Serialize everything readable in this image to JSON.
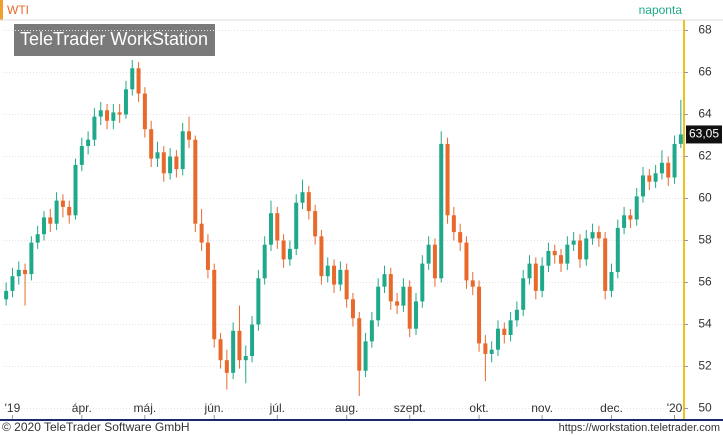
{
  "chart_data": {
    "type": "candlestick",
    "title": "WTI",
    "subtitle": "naponta",
    "watermark": "TeleTrader WorkStation",
    "footer_left": "© 2020 TeleTrader Software GmbH",
    "footer_right": "https://workstation.teletrader.com",
    "up_color": "#1fa98a",
    "down_color": "#e8692b",
    "ylim": [
      49.5,
      68.5
    ],
    "yticks": [
      50,
      52,
      54,
      56,
      58,
      60,
      62,
      64,
      66,
      68
    ],
    "grid": true,
    "xticks": [
      {
        "value": 1,
        "label": "'19"
      },
      {
        "value": 12,
        "label": "ápr."
      },
      {
        "value": 22,
        "label": "máj."
      },
      {
        "value": 33,
        "label": "jún."
      },
      {
        "value": 43,
        "label": "júl."
      },
      {
        "value": 54,
        "label": "aug."
      },
      {
        "value": 64,
        "label": "szept."
      },
      {
        "value": 75,
        "label": "okt."
      },
      {
        "value": 85,
        "label": "nov."
      },
      {
        "value": 96,
        "label": "dec."
      },
      {
        "value": 106,
        "label": "'20"
      }
    ],
    "last_label": "63,05",
    "open": [
      55.2,
      55.6,
      56.3,
      56.6,
      56.4,
      57.9,
      58.3,
      59.1,
      58.8,
      59.9,
      59.6,
      59.2,
      61.6,
      62.5,
      62.8,
      63.9,
      64.2,
      63.7,
      64.1,
      64.0,
      65.2,
      66.2,
      65.0,
      63.3,
      61.9,
      62.2,
      61.2,
      62.0,
      61.4,
      63.2,
      62.8,
      58.8,
      57.9,
      56.6,
      53.3,
      52.3,
      51.7,
      53.7,
      52.3,
      52.5,
      54.0,
      56.2,
      57.8,
      59.3,
      58.0,
      57.1,
      57.6,
      59.8,
      60.3,
      59.4,
      58.2,
      56.3,
      56.8,
      55.9,
      56.6,
      55.2,
      54.3,
      51.8,
      53.2,
      54.2,
      55.8,
      56.4,
      55.1,
      54.9,
      55.8,
      53.8,
      55.1,
      56.9,
      57.8,
      56.2,
      62.6,
      59.2,
      58.4,
      57.9,
      56.1,
      55.8,
      53.1,
      52.6,
      52.8,
      53.8,
      53.5,
      54.2,
      54.7,
      56.2,
      56.9,
      55.6,
      56.8,
      57.5,
      57.3,
      56.9,
      57.8,
      58.0,
      57.1,
      58.1,
      58.4,
      58.1,
      55.6,
      56.5,
      58.6,
      59.2,
      59.0,
      60.1,
      61.1,
      60.8,
      61.2,
      61.7,
      61.0,
      62.6
    ],
    "high": [
      56.0,
      56.7,
      57.0,
      56.9,
      58.2,
      58.7,
      59.4,
      59.5,
      60.3,
      60.2,
      59.9,
      61.9,
      62.9,
      63.2,
      64.3,
      64.6,
      64.5,
      64.5,
      64.5,
      65.6,
      66.6,
      66.5,
      65.3,
      63.7,
      62.7,
      62.5,
      62.4,
      62.3,
      63.6,
      63.9,
      63.0,
      59.5,
      58.3,
      56.9,
      53.6,
      52.8,
      54.1,
      54.9,
      53.0,
      54.4,
      56.6,
      58.2,
      59.9,
      59.6,
      58.3,
      58.0,
      60.2,
      60.9,
      60.6,
      59.7,
      58.5,
      57.2,
      57.1,
      57.0,
      56.9,
      55.5,
      54.6,
      53.6,
      54.6,
      56.2,
      56.8,
      56.7,
      55.5,
      56.2,
      56.1,
      55.5,
      57.3,
      58.2,
      58.1,
      63.2,
      62.9,
      59.6,
      58.8,
      58.2,
      56.5,
      56.1,
      53.5,
      53.2,
      54.2,
      54.1,
      54.6,
      55.1,
      56.6,
      57.3,
      57.2,
      57.2,
      57.9,
      57.8,
      57.6,
      58.2,
      58.4,
      58.3,
      58.5,
      58.8,
      58.7,
      58.4,
      56.9,
      59.0,
      59.6,
      59.5,
      60.5,
      61.5,
      61.4,
      61.6,
      62.3,
      62.0,
      63.0,
      64.7
    ],
    "low": [
      54.9,
      55.3,
      55.9,
      54.9,
      56.1,
      57.6,
      58.0,
      58.4,
      58.5,
      59.1,
      58.8,
      59.0,
      61.3,
      62.1,
      62.5,
      63.5,
      63.3,
      63.3,
      63.6,
      63.8,
      64.9,
      64.6,
      62.9,
      61.5,
      61.5,
      60.8,
      60.9,
      61.0,
      61.1,
      62.4,
      58.4,
      57.5,
      56.2,
      52.9,
      51.9,
      50.9,
      51.4,
      51.9,
      51.2,
      52.2,
      53.7,
      55.9,
      57.5,
      57.6,
      56.7,
      56.8,
      57.3,
      59.5,
      59.0,
      57.8,
      55.9,
      56.0,
      55.5,
      55.6,
      54.8,
      53.9,
      50.6,
      51.5,
      52.9,
      53.9,
      55.5,
      54.7,
      54.5,
      54.6,
      53.4,
      53.5,
      54.8,
      56.6,
      55.8,
      56.0,
      58.8,
      58.0,
      57.5,
      55.7,
      55.4,
      52.7,
      51.3,
      52.2,
      52.5,
      53.1,
      53.2,
      53.9,
      54.4,
      55.9,
      55.2,
      55.3,
      56.5,
      56.9,
      56.5,
      56.6,
      57.5,
      56.7,
      56.8,
      57.8,
      57.7,
      55.2,
      55.3,
      56.2,
      58.3,
      58.6,
      58.7,
      59.8,
      60.4,
      60.5,
      60.9,
      60.6,
      60.7,
      62.4
    ],
    "close": [
      55.6,
      56.3,
      56.6,
      56.4,
      57.9,
      58.3,
      59.1,
      58.8,
      59.9,
      59.6,
      59.2,
      61.6,
      62.5,
      62.8,
      63.9,
      64.2,
      63.7,
      64.1,
      64.0,
      65.2,
      66.2,
      65.0,
      63.3,
      61.9,
      62.2,
      61.2,
      62.0,
      61.4,
      63.2,
      62.8,
      58.8,
      57.9,
      56.6,
      53.3,
      52.3,
      51.7,
      53.7,
      52.3,
      52.5,
      54.0,
      56.2,
      57.8,
      59.3,
      58.0,
      57.1,
      57.6,
      59.8,
      60.3,
      59.4,
      58.2,
      56.3,
      56.8,
      55.9,
      56.6,
      55.2,
      54.3,
      51.8,
      53.2,
      54.2,
      55.8,
      56.4,
      55.1,
      54.9,
      55.8,
      53.8,
      55.1,
      56.9,
      57.8,
      56.2,
      62.6,
      59.2,
      58.4,
      57.9,
      56.1,
      55.8,
      53.1,
      52.6,
      52.8,
      53.8,
      53.5,
      54.2,
      54.7,
      56.2,
      56.9,
      55.6,
      56.8,
      57.5,
      57.3,
      56.9,
      57.8,
      58.0,
      57.1,
      58.1,
      58.4,
      58.1,
      55.6,
      56.5,
      58.6,
      59.2,
      59.0,
      60.1,
      61.1,
      60.8,
      61.2,
      61.7,
      61.0,
      62.6,
      63.05
    ]
  }
}
